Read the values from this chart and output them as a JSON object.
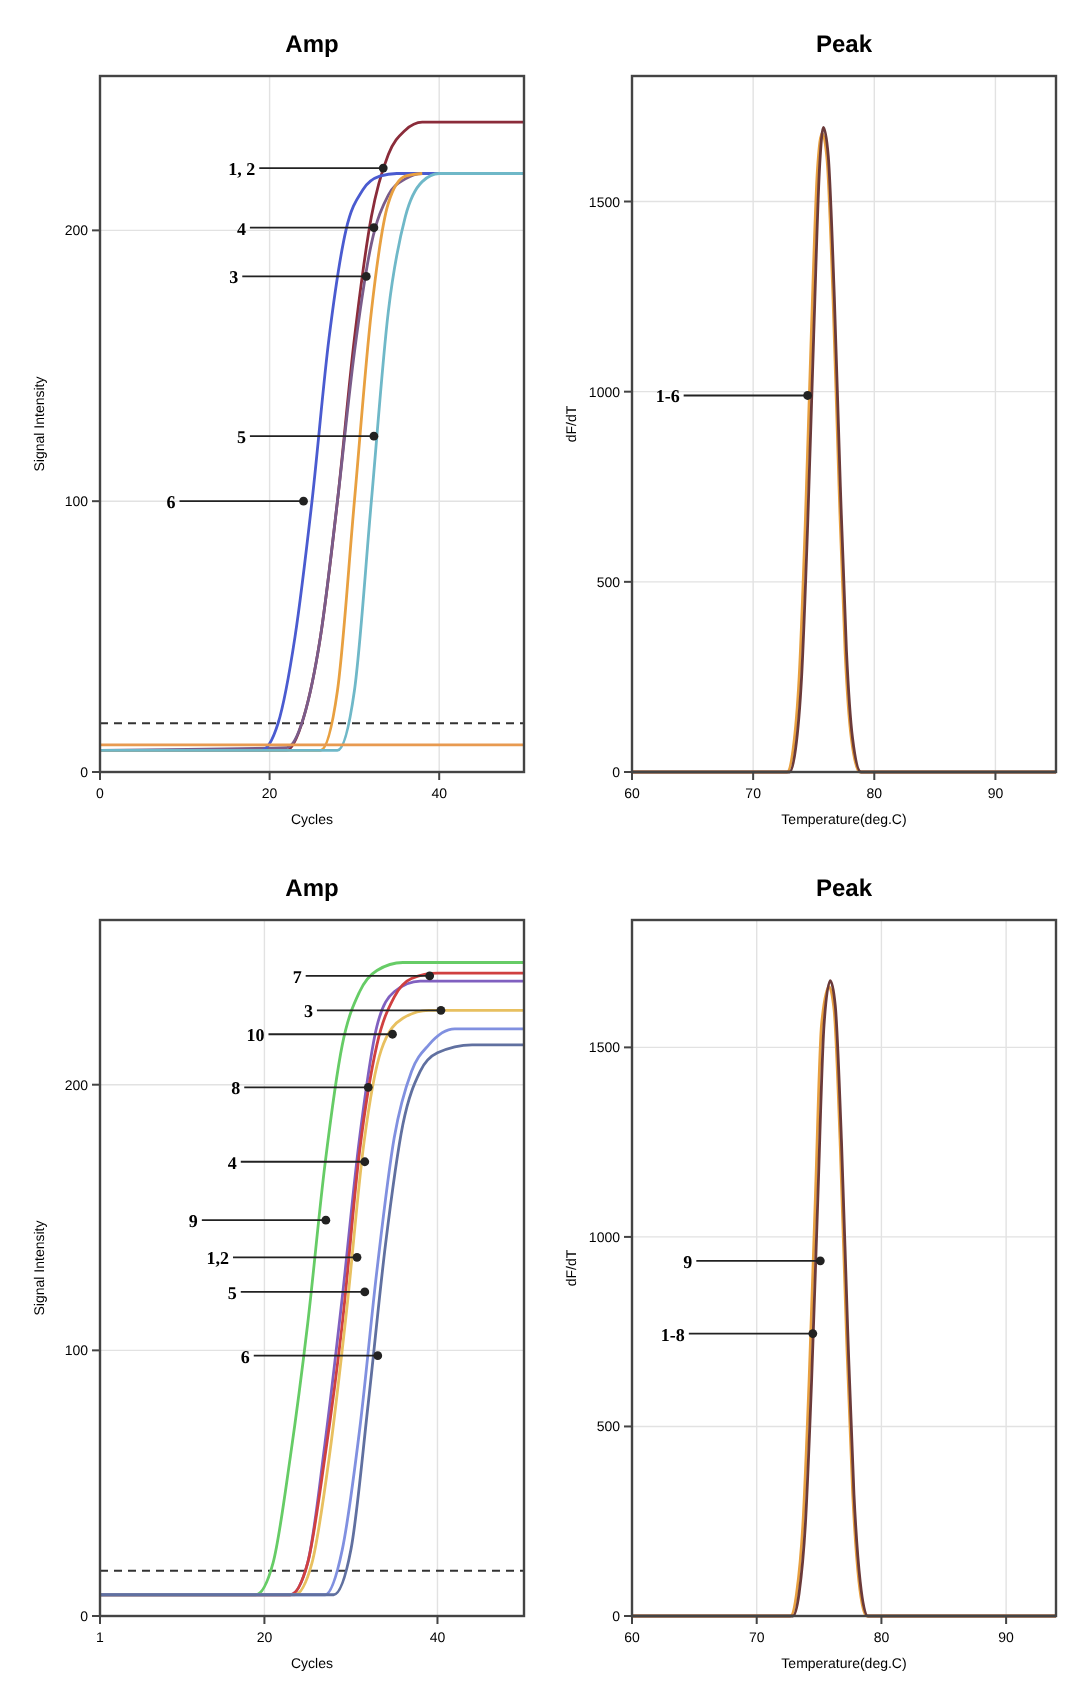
{
  "chart_data": [
    {
      "type": "line",
      "title": "Amp",
      "xlabel": "Cycles",
      "ylabel": "Signal Intensity",
      "xlim": [
        0,
        50
      ],
      "ylim": [
        0,
        257
      ],
      "xticks": [
        0,
        20,
        40
      ],
      "yticks": [
        0,
        100,
        200
      ],
      "grid": true,
      "ref_lines": [
        {
          "axis": "y",
          "value": 18,
          "color": "#333333",
          "line_style": "dashed"
        }
      ],
      "series": [
        {
          "color": "#8b2c3a",
          "x": [
            0,
            22,
            24,
            26,
            28,
            30,
            32,
            34,
            36,
            38,
            50
          ],
          "values": [
            8,
            8,
            20,
            50,
            100,
            160,
            205,
            228,
            237,
            240,
            240
          ]
        },
        {
          "color": "#7a5c8a",
          "x": [
            0,
            22,
            24,
            26,
            28,
            30,
            32,
            34,
            36,
            38,
            50
          ],
          "values": [
            8,
            9,
            20,
            50,
            100,
            155,
            195,
            213,
            219,
            221,
            221
          ]
        },
        {
          "color": "#4a5bd0",
          "x": [
            0,
            19,
            21,
            23,
            25,
            27,
            29,
            31,
            33,
            35,
            50
          ],
          "values": [
            8,
            8,
            18,
            50,
            100,
            160,
            200,
            215,
            220,
            221,
            221
          ]
        },
        {
          "color": "#e8a040",
          "x": [
            0,
            26,
            28,
            30,
            32,
            34,
            36,
            38
          ],
          "values": [
            8,
            8,
            30,
            100,
            170,
            210,
            220,
            221
          ]
        },
        {
          "color": "#6fb8c8",
          "x": [
            0,
            28,
            30,
            32,
            34,
            36,
            38,
            40,
            50
          ],
          "values": [
            8,
            8,
            30,
            100,
            170,
            205,
            218,
            221,
            221
          ]
        },
        {
          "color": "#e89a50",
          "x": [
            0,
            50
          ],
          "values": [
            10,
            10
          ]
        }
      ],
      "annotations": [
        {
          "text": "1, 2",
          "x": 33.4,
          "y": 223
        },
        {
          "text": "4",
          "x": 32.3,
          "y": 201
        },
        {
          "text": "3",
          "x": 31.4,
          "y": 183
        },
        {
          "text": "5",
          "x": 32.3,
          "y": 124
        },
        {
          "text": "6",
          "x": 24,
          "y": 100
        }
      ]
    },
    {
      "type": "line",
      "title": "Peak",
      "xlabel": "Temperature(deg.C)",
      "ylabel": "dF/dT",
      "xlim": [
        60,
        95
      ],
      "ylim": [
        0,
        1830
      ],
      "xticks": [
        60,
        70,
        80,
        90
      ],
      "yticks": [
        0,
        500,
        1000,
        1500
      ],
      "grid": true,
      "series": [
        {
          "color": "#e8a040",
          "x": [
            60,
            72.8,
            73.3,
            73.8,
            74.3,
            74.8,
            75.3,
            75.7,
            76.1,
            76.6,
            77.1,
            77.6,
            78.1,
            78.8,
            95
          ],
          "values": [
            0,
            0,
            60,
            250,
            650,
            1150,
            1580,
            1680,
            1610,
            1240,
            740,
            310,
            90,
            0,
            0
          ]
        },
        {
          "color": "#6b3a3a",
          "x": [
            60,
            73,
            73.5,
            74,
            74.5,
            75,
            75.5,
            75.8,
            76.2,
            76.7,
            77.2,
            77.7,
            78.2,
            78.9,
            95
          ],
          "values": [
            0,
            0,
            60,
            250,
            650,
            1150,
            1600,
            1695,
            1620,
            1250,
            750,
            320,
            90,
            0,
            0
          ]
        }
      ],
      "annotations": [
        {
          "text": "1-6",
          "x": 74.5,
          "y": 990
        }
      ]
    },
    {
      "type": "line",
      "title": "Amp",
      "xlabel": "Cycles",
      "ylabel": "Signal Intensity",
      "xlim": [
        1,
        50
      ],
      "ylim": [
        0,
        262
      ],
      "xticks": [
        1,
        20,
        40
      ],
      "yticks": [
        0,
        100,
        200
      ],
      "grid": true,
      "ref_lines": [
        {
          "axis": "y",
          "value": 17,
          "color": "#333333",
          "line_style": "dashed"
        }
      ],
      "series": [
        {
          "color": "#66cc66",
          "x": [
            1,
            19,
            21,
            23,
            25,
            27,
            29,
            31,
            33,
            36,
            50
          ],
          "values": [
            8,
            8,
            20,
            60,
            110,
            170,
            215,
            235,
            243,
            246,
            246
          ]
        },
        {
          "color": "#8060c0",
          "x": [
            1,
            23,
            25,
            27,
            29,
            31,
            33,
            35,
            38,
            50
          ],
          "values": [
            8,
            8,
            20,
            65,
            120,
            180,
            222,
            235,
            239,
            239
          ]
        },
        {
          "color": "#d04040",
          "x": [
            1,
            23,
            25,
            27,
            29,
            31,
            33,
            35,
            37,
            40,
            50
          ],
          "values": [
            8,
            8,
            20,
            60,
            110,
            175,
            215,
            233,
            240,
            242,
            242
          ]
        },
        {
          "color": "#e8c060",
          "x": [
            1,
            23.5,
            25.5,
            27.5,
            29.5,
            31.5,
            33.5,
            36,
            39,
            50
          ],
          "values": [
            8,
            8,
            20,
            60,
            115,
            178,
            213,
            225,
            228,
            228
          ]
        },
        {
          "color": "#8090e0",
          "x": [
            1,
            27,
            29,
            31,
            33,
            35,
            37,
            39,
            42,
            50
          ],
          "values": [
            8,
            8,
            25,
            70,
            130,
            180,
            205,
            215,
            221,
            221
          ]
        },
        {
          "color": "#6070a0",
          "x": [
            1,
            28,
            30,
            32,
            34,
            36,
            38,
            40,
            44,
            50
          ],
          "values": [
            8,
            8,
            25,
            80,
            140,
            185,
            205,
            212,
            215,
            215
          ]
        }
      ],
      "annotations": [
        {
          "text": "7",
          "x": 39.1,
          "y": 241
        },
        {
          "text": "3",
          "x": 40.4,
          "y": 228
        },
        {
          "text": "10",
          "x": 34.8,
          "y": 219
        },
        {
          "text": "8",
          "x": 32,
          "y": 199
        },
        {
          "text": "4",
          "x": 31.6,
          "y": 171
        },
        {
          "text": "9",
          "x": 27.1,
          "y": 149
        },
        {
          "text": "1,2",
          "x": 30.7,
          "y": 135
        },
        {
          "text": "5",
          "x": 31.6,
          "y": 122
        },
        {
          "text": "6",
          "x": 33.1,
          "y": 98
        }
      ]
    },
    {
      "type": "line",
      "title": "Peak",
      "xlabel": "Temperature(deg.C)",
      "ylabel": "dF/dT",
      "xlim": [
        60,
        94
      ],
      "ylim": [
        0,
        1836
      ],
      "xticks": [
        60,
        70,
        80,
        90
      ],
      "yticks": [
        0,
        500,
        1000,
        1500
      ],
      "grid": true,
      "series": [
        {
          "color": "#e8a040",
          "x": [
            60,
            72.7,
            73.2,
            73.7,
            74.2,
            74.7,
            75.2,
            75.8,
            76.2,
            76.7,
            77.2,
            77.7,
            78.2,
            78.8,
            94
          ],
          "values": [
            0,
            0,
            60,
            240,
            620,
            1100,
            1560,
            1660,
            1600,
            1240,
            740,
            320,
            90,
            0,
            0
          ]
        },
        {
          "color": "#6b3a3a",
          "x": [
            60,
            72.9,
            73.4,
            73.9,
            74.4,
            74.9,
            75.4,
            75.9,
            76.3,
            76.8,
            77.3,
            77.8,
            78.3,
            78.9,
            94
          ],
          "values": [
            0,
            0,
            60,
            240,
            620,
            1100,
            1560,
            1676,
            1610,
            1250,
            750,
            320,
            90,
            0,
            0
          ]
        }
      ],
      "annotations": [
        {
          "text": "9",
          "x": 75.1,
          "y": 937
        },
        {
          "text": "1-8",
          "x": 74.5,
          "y": 745
        }
      ]
    }
  ]
}
